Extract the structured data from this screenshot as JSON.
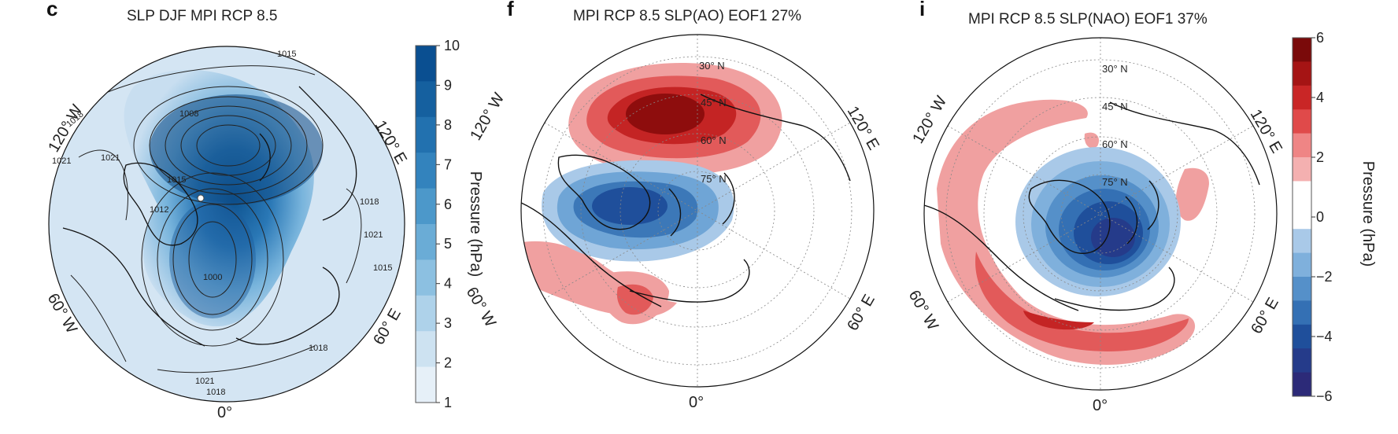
{
  "panels": [
    {
      "letter": "c",
      "title": "SLP DJF MPI RCP 8.5",
      "colorbar": {
        "label": "Pressure (hPa)",
        "ticks": [
          "10",
          "9",
          "8",
          "7",
          "6",
          "5",
          "4",
          "3",
          "2",
          "1"
        ],
        "colors": [
          "#0a4f91",
          "#15609f",
          "#2271af",
          "#3383bd",
          "#4c98ca",
          "#6aacd6",
          "#8cc0e1",
          "#aed2ea",
          "#cde2f1",
          "#e6f0f8"
        ]
      },
      "map_labels": {
        "lon_120w": "120° W",
        "lon_120e": "120° E",
        "lon_60w": "60° W",
        "lon_60e": "60° E",
        "lon_0": "0°"
      },
      "contour_labels": [
        "1015",
        "1018",
        "1021",
        "1021",
        "1008",
        "1012",
        "1015",
        "1000",
        "1018",
        "1021",
        "1015",
        "1018",
        "1021",
        "1018"
      ]
    },
    {
      "letter": "f",
      "title": "MPI RCP 8.5 SLP(AO) EOF1 27%",
      "map_labels": {
        "lon_120w": "120° W",
        "lon_120e": "120° E",
        "lon_60w": "60° W",
        "lon_60e": "60° E",
        "lon_0": "0°",
        "lat_30": "30° N",
        "lat_45": "45° N",
        "lat_60": "60° N",
        "lat_75": "75° N"
      }
    },
    {
      "letter": "i",
      "title": "MPI RCP 8.5 SLP(NAO) EOF1 37%",
      "colorbar": {
        "label": "Pressure (hPa)",
        "ticks": [
          "6",
          "4",
          "2",
          "0",
          "−2",
          "−4",
          "−6"
        ],
        "colors": [
          "#7a0a0a",
          "#a51414",
          "#c92626",
          "#e04a4a",
          "#ef8585",
          "#f4b0b0",
          "#ffffff",
          "#ffffff",
          "#a9c9e8",
          "#7fb0dc",
          "#5590c9",
          "#3470b4",
          "#1f4f9b",
          "#253b8a",
          "#2c2a78"
        ]
      },
      "map_labels": {
        "lon_120w": "120° W",
        "lon_120e": "120° E",
        "lon_60w": "60° W",
        "lon_60e": "60° E",
        "lon_0": "0°",
        "lat_30": "30° N",
        "lat_45": "45° N",
        "lat_60": "60° N",
        "lat_75": "75° N"
      }
    }
  ]
}
